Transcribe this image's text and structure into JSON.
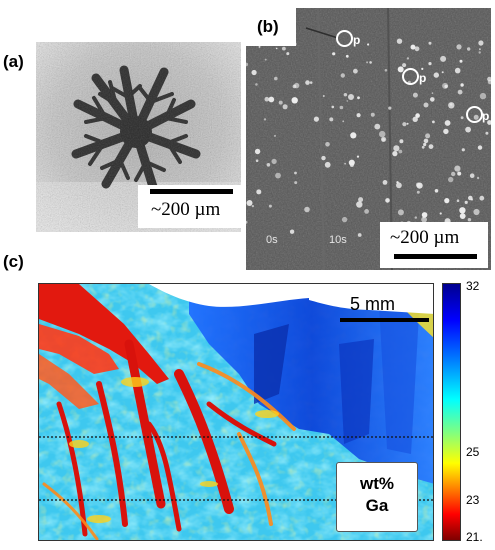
{
  "panels": {
    "a": {
      "label": "(a)",
      "scale_text": "~200 µm"
    },
    "b": {
      "label": "(b)",
      "markers": [
        "p",
        "p",
        "p"
      ],
      "time_stamps": [
        "0s",
        "10s"
      ],
      "scale_text": "~200 µm"
    },
    "c": {
      "label": "(c)",
      "scale_text": "5 mm",
      "legend_line1": "wt%",
      "legend_line2": "Ga",
      "colorbar_ticks": [
        "32",
        "25",
        "23",
        "21."
      ]
    }
  },
  "colors": {
    "colormap": [
      "#7f0000",
      "#ff0000",
      "#ff8000",
      "#ffff00",
      "#80ff80",
      "#00ffff",
      "#0080ff",
      "#0000ff",
      "#00008f"
    ]
  }
}
